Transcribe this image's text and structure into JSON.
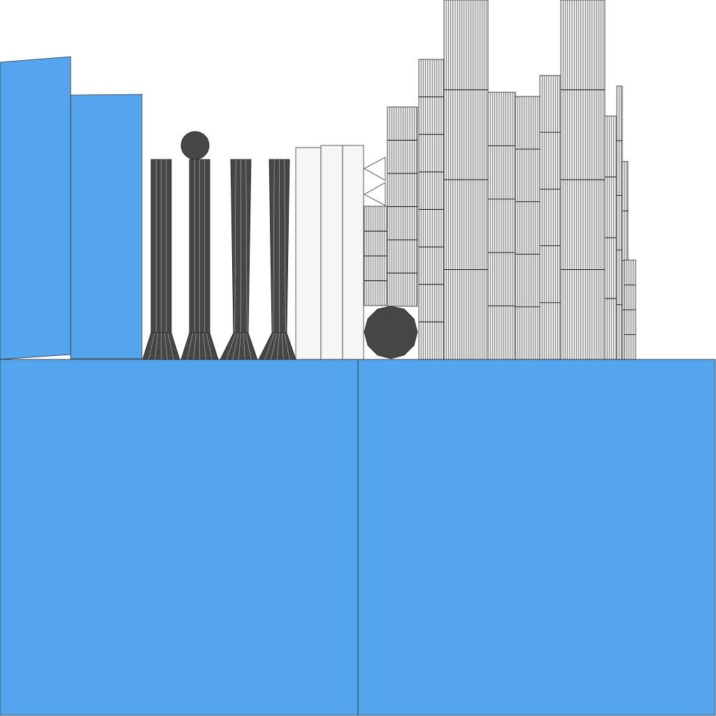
{
  "colors": {
    "background": "#ffffff",
    "blue": "#55a5ee",
    "dark": "#464646",
    "light": "#f6f6f6",
    "grey": "#e6e6e6",
    "outline": "#222222"
  }
}
